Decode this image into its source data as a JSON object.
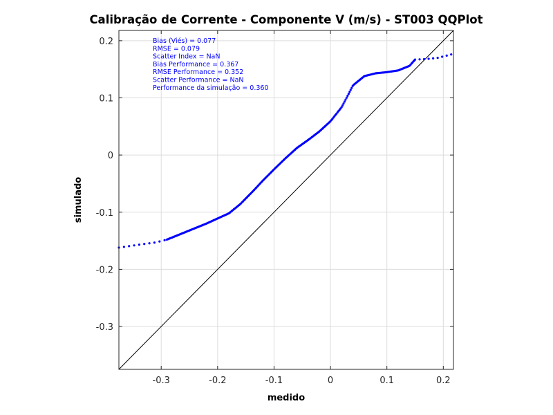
{
  "chart_data": {
    "type": "scatter",
    "title": "Calibração de Corrente - Componente V (m/s) - ST003 QQPlot",
    "xlabel": "medido",
    "ylabel": "simulado",
    "xlim": [
      -0.375,
      0.218
    ],
    "ylim": [
      -0.375,
      0.218
    ],
    "xticks": [
      -0.3,
      -0.2,
      -0.1,
      0,
      0.1,
      0.2
    ],
    "yticks": [
      -0.3,
      -0.2,
      -0.1,
      0,
      0.1,
      0.2
    ],
    "xtick_labels": [
      "-0.3",
      "-0.2",
      "-0.1",
      "0",
      "0.1",
      "0.2"
    ],
    "ytick_labels": [
      "-0.3",
      "-0.2",
      "-0.1",
      "0",
      "0.1",
      "0.2"
    ],
    "grid": true,
    "reference_line": "y = x",
    "point_color": "#0000ff",
    "qq_curve": {
      "x": [
        -0.375,
        -0.34,
        -0.31,
        -0.29,
        -0.26,
        -0.24,
        -0.22,
        -0.2,
        -0.18,
        -0.16,
        -0.14,
        -0.12,
        -0.1,
        -0.08,
        -0.06,
        -0.04,
        -0.02,
        0,
        0.02,
        0.04,
        0.06,
        0.08,
        0.1,
        0.12,
        0.14,
        0.15,
        0.17,
        0.19,
        0.218
      ],
      "y": [
        -0.162,
        -0.157,
        -0.153,
        -0.148,
        -0.136,
        -0.128,
        -0.12,
        -0.111,
        -0.102,
        -0.086,
        -0.066,
        -0.045,
        -0.025,
        -0.006,
        0.012,
        0.026,
        0.041,
        0.059,
        0.084,
        0.122,
        0.138,
        0.143,
        0.145,
        0.148,
        0.156,
        0.167,
        0.168,
        0.17,
        0.177
      ]
    },
    "stats": [
      "Bias (Viés) = 0.077",
      "RMSE = 0.079",
      "Scatter Index = NaN",
      "Bias Performance = 0.367",
      "RMSE Performance = 0.352",
      "Scatter Performance = NaN",
      "Performance da simulação = 0.360"
    ]
  }
}
